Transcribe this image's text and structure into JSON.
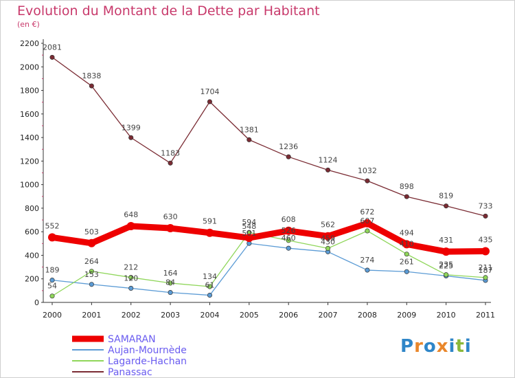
{
  "title": "Evolution du Montant de la Dette par Habitant",
  "unit_label": "(en €)",
  "logo": {
    "letters": [
      "P",
      "r",
      "o",
      "x",
      "i",
      "t",
      "i"
    ],
    "colors": [
      "#2f86c8",
      "#e9872b",
      "#2f86c8",
      "#e9872b",
      "#2f86c8",
      "#8ab83a",
      "#2f86c8"
    ]
  },
  "chart_data": {
    "type": "line",
    "x": [
      "2000",
      "2001",
      "2002",
      "2003",
      "2004",
      "2005",
      "2006",
      "2007",
      "2008",
      "2009",
      "2010",
      "2011"
    ],
    "yticks": [
      0,
      200,
      400,
      600,
      800,
      1000,
      1200,
      1400,
      1600,
      1800,
      2000,
      2200
    ],
    "ylim": [
      0,
      2200
    ],
    "grid": false,
    "legend_position": "bottom-left",
    "series": [
      {
        "name": "SAMARAN",
        "color": "#ee0000",
        "bold": true,
        "values": [
          552,
          503,
          648,
          630,
          591,
          548,
          608,
          562,
          672,
          494,
          431,
          435
        ]
      },
      {
        "name": "Aujan-Mournède",
        "color": "#5b9bd5",
        "bold": false,
        "values": [
          189,
          153,
          120,
          84,
          61,
          501,
          460,
          430,
          274,
          261,
          225,
          187
        ]
      },
      {
        "name": "Lagarde-Hachan",
        "color": "#8fd65a",
        "bold": false,
        "values": [
          54,
          264,
          212,
          164,
          134,
          594,
          526,
          459,
          607,
          410,
          235,
          211
        ]
      },
      {
        "name": "Panassac",
        "color": "#7a2b33",
        "bold": false,
        "values": [
          2081,
          1838,
          1399,
          1183,
          1704,
          1381,
          1236,
          1124,
          1032,
          898,
          819,
          733
        ]
      }
    ]
  }
}
